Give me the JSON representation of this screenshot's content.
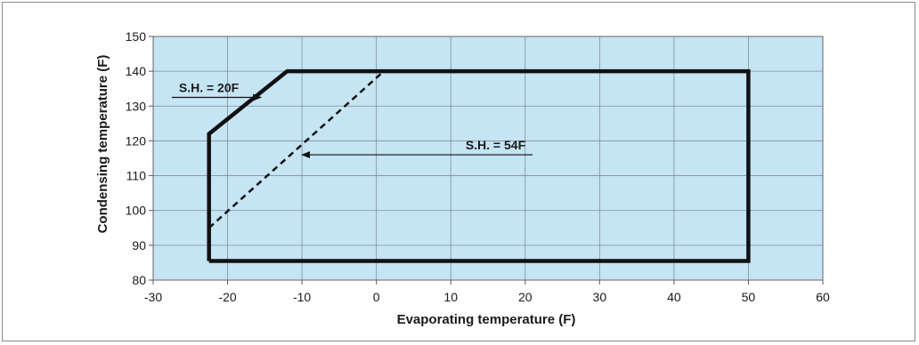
{
  "chart_data": {
    "type": "line",
    "title": "",
    "xlabel": "Evaporating temperature (F)",
    "ylabel": "Condensing temperature (F)",
    "xlim": [
      -30,
      60
    ],
    "ylim": [
      80,
      150
    ],
    "xticks": [
      -30,
      -20,
      -10,
      0,
      10,
      20,
      30,
      40,
      50,
      60
    ],
    "yticks": [
      80,
      90,
      100,
      110,
      120,
      130,
      140,
      150
    ],
    "grid": true,
    "plot_background": "#c5e4f4",
    "series": [
      {
        "style": "solid-thick",
        "color": "#111111",
        "x": [
          -22.5,
          -22.5,
          -12,
          50,
          50,
          -22.5
        ],
        "y": [
          85.5,
          122,
          140,
          140,
          85.5,
          85.5
        ]
      },
      {
        "style": "dashed",
        "color": "#111111",
        "x": [
          -22.5,
          1
        ],
        "y": [
          95,
          140
        ]
      }
    ],
    "annotations": [
      {
        "text": "S.H. = 20F",
        "arrow_from": [
          -27.5,
          132.5
        ],
        "arrow_to": [
          -15.5,
          132.5
        ]
      },
      {
        "text": "S.H. = 54F",
        "arrow_from": [
          21,
          116
        ],
        "arrow_to": [
          -10,
          116
        ]
      }
    ]
  }
}
